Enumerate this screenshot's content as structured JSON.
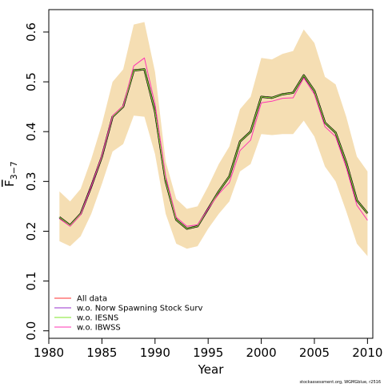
{
  "chart_data": {
    "type": "line",
    "xlabel": "Year",
    "ylabel": {
      "base": "F",
      "subscript": "3−7"
    },
    "xlim": [
      1980,
      2010.5
    ],
    "ylim": [
      -0.015,
      0.645
    ],
    "x_ticks": [
      1980,
      1985,
      1990,
      1995,
      2000,
      2005,
      2010
    ],
    "y_ticks": [
      0.0,
      0.1,
      0.2,
      0.3,
      0.4,
      0.5,
      0.6
    ],
    "y_tick_labels": [
      "0.0",
      "0.1",
      "0.2",
      "0.3",
      "0.4",
      "0.5",
      "0.6"
    ],
    "grid": false,
    "legend_position": "bottom-left",
    "x": [
      1981,
      1982,
      1983,
      1984,
      1985,
      1986,
      1987,
      1988,
      1989,
      1990,
      1991,
      1992,
      1993,
      1994,
      1995,
      1996,
      1997,
      1998,
      1999,
      2000,
      2001,
      2002,
      2003,
      2004,
      2005,
      2006,
      2007,
      2008,
      2009,
      2010
    ],
    "band": {
      "color": "#F5DEB3",
      "upper": [
        0.28,
        0.26,
        0.285,
        0.345,
        0.415,
        0.5,
        0.525,
        0.615,
        0.62,
        0.52,
        0.34,
        0.265,
        0.245,
        0.25,
        0.29,
        0.335,
        0.37,
        0.445,
        0.47,
        0.548,
        0.545,
        0.556,
        0.562,
        0.605,
        0.578,
        0.51,
        0.495,
        0.43,
        0.35,
        0.32
      ],
      "lower": [
        0.18,
        0.17,
        0.19,
        0.235,
        0.295,
        0.36,
        0.375,
        0.432,
        0.43,
        0.355,
        0.235,
        0.175,
        0.165,
        0.17,
        0.205,
        0.235,
        0.26,
        0.32,
        0.335,
        0.395,
        0.393,
        0.395,
        0.395,
        0.422,
        0.39,
        0.33,
        0.3,
        0.24,
        0.175,
        0.15
      ]
    },
    "series": [
      {
        "name": "",
        "color": "#000000",
        "width": 2.5,
        "values": [
          0.228,
          0.212,
          0.235,
          0.29,
          0.35,
          0.43,
          0.45,
          0.523,
          0.525,
          0.44,
          0.3,
          0.223,
          0.205,
          0.21,
          0.245,
          0.28,
          0.31,
          0.38,
          0.4,
          0.47,
          0.468,
          0.475,
          0.478,
          0.513,
          0.482,
          0.418,
          0.398,
          0.338,
          0.262,
          0.236
        ]
      },
      {
        "name": "All data",
        "color": "#FF3030",
        "width": 1,
        "values": [
          0.228,
          0.212,
          0.235,
          0.29,
          0.35,
          0.43,
          0.45,
          0.523,
          0.525,
          0.44,
          0.3,
          0.223,
          0.205,
          0.21,
          0.245,
          0.28,
          0.31,
          0.38,
          0.4,
          0.47,
          0.468,
          0.475,
          0.478,
          0.513,
          0.482,
          0.418,
          0.398,
          0.338,
          0.262,
          0.236
        ]
      },
      {
        "name": "w.o. Norw Spawning Stock Surv",
        "color": "#9A32CD",
        "width": 1,
        "values": [
          0.228,
          0.212,
          0.235,
          0.29,
          0.35,
          0.43,
          0.45,
          0.523,
          0.525,
          0.44,
          0.3,
          0.223,
          0.205,
          0.21,
          0.245,
          0.28,
          0.31,
          0.38,
          0.4,
          0.47,
          0.468,
          0.475,
          0.478,
          0.513,
          0.482,
          0.418,
          0.398,
          0.338,
          0.262,
          0.236
        ]
      },
      {
        "name": "w.o. IESNS",
        "color": "#7FE52A",
        "width": 1,
        "values": [
          0.228,
          0.212,
          0.235,
          0.29,
          0.35,
          0.43,
          0.45,
          0.523,
          0.525,
          0.44,
          0.3,
          0.223,
          0.205,
          0.21,
          0.245,
          0.28,
          0.31,
          0.38,
          0.4,
          0.47,
          0.468,
          0.475,
          0.478,
          0.513,
          0.482,
          0.418,
          0.398,
          0.338,
          0.262,
          0.236
        ]
      },
      {
        "name": "w.o. IBWSS",
        "color": "#FF34B3",
        "width": 1,
        "values": [
          0.225,
          0.21,
          0.233,
          0.29,
          0.352,
          0.432,
          0.452,
          0.532,
          0.548,
          0.455,
          0.31,
          0.228,
          0.21,
          0.213,
          0.245,
          0.275,
          0.298,
          0.362,
          0.383,
          0.458,
          0.461,
          0.467,
          0.468,
          0.508,
          0.475,
          0.41,
          0.39,
          0.328,
          0.252,
          0.222
        ]
      }
    ],
    "footnote": "stockassessment.org, WGMGblue, r2516"
  }
}
